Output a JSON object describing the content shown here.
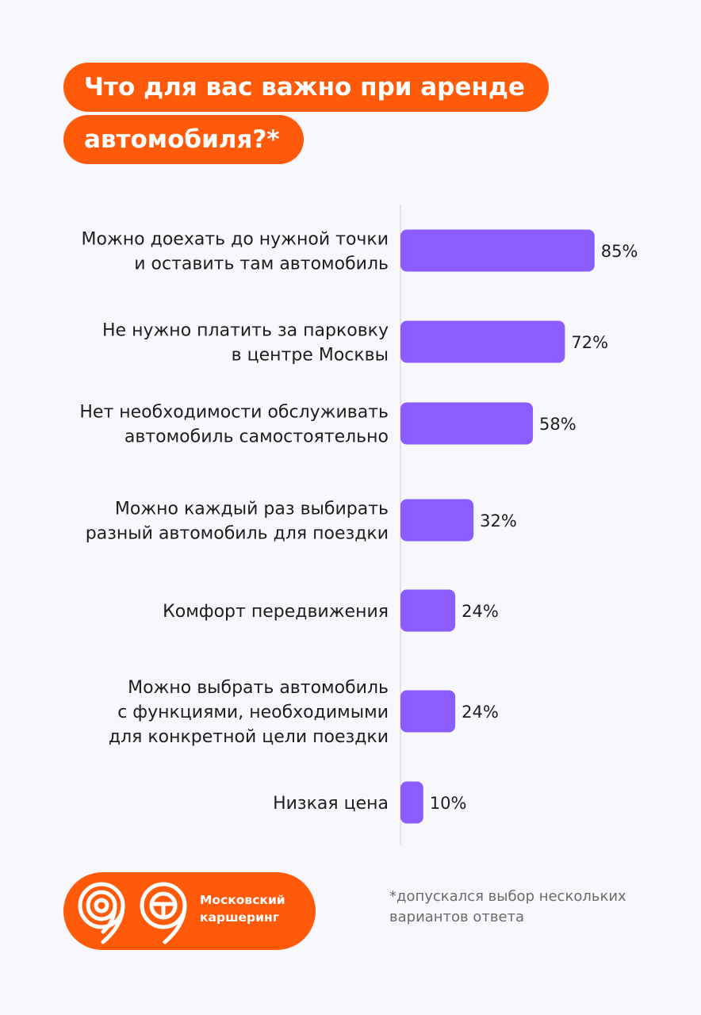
{
  "header": {
    "title_line_1": "Что для вас важно при аренде",
    "title_line_2": "автомобиля?*"
  },
  "colors": {
    "accent": "#ff5a0a",
    "bar": "#8b5cff",
    "background": "#f8f7fb"
  },
  "chart_data": {
    "type": "bar",
    "orientation": "horizontal",
    "title": "Что для вас важно при аренде автомобиля?*",
    "categories": [
      [
        "Можно доехать до нужной точки",
        "и оставить там автомобиль"
      ],
      [
        "Не нужно платить за парковку",
        "в центре Москвы"
      ],
      [
        "Нет необходимости обслуживать",
        "автомобиль самостоятельно"
      ],
      [
        "Можно каждый раз выбирать",
        "разный автомобиль для поездки"
      ],
      [
        "Комфорт передвижения"
      ],
      [
        "Можно выбрать автомобиль",
        "с функциями, необходимыми",
        "для конкретной цели поездки"
      ],
      [
        "Низкая цена"
      ]
    ],
    "values": [
      85,
      72,
      58,
      32,
      24,
      24,
      10
    ],
    "value_labels": [
      "85%",
      "72%",
      "58%",
      "32%",
      "24%",
      "24%",
      "10%"
    ],
    "unit": "%",
    "xlim": [
      0,
      100
    ],
    "grid": false,
    "legend": "none"
  },
  "brand": {
    "name_line_1": "Московский",
    "name_line_2": "каршеринг",
    "logo_icon": "steering-wheel-nine-logo-icon"
  },
  "footnote": {
    "line_1": "*допускался выбор нескольких",
    "line_2": "вариантов ответа"
  }
}
